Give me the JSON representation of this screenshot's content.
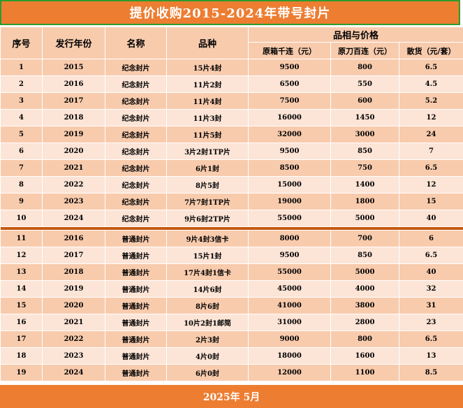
{
  "title": "提价收购2015-2024年带号封片",
  "headers": {
    "seq": "序号",
    "year": "发行年份",
    "name": "名称",
    "variety": "品种",
    "group": "品相与价格",
    "box": "原箱千连（元）",
    "knife": "原刀百连（元）",
    "loose": "散货（元/套）"
  },
  "section1": [
    {
      "seq": "1",
      "year": "2015",
      "name": "纪念封片",
      "variety": "15片4封",
      "box": "9500",
      "knife": "800",
      "loose": "6.5"
    },
    {
      "seq": "2",
      "year": "2016",
      "name": "纪念封片",
      "variety": "11片2封",
      "box": "6500",
      "knife": "550",
      "loose": "4.5"
    },
    {
      "seq": "3",
      "year": "2017",
      "name": "纪念封片",
      "variety": "11片4封",
      "box": "7500",
      "knife": "600",
      "loose": "5.2"
    },
    {
      "seq": "4",
      "year": "2018",
      "name": "纪念封片",
      "variety": "11片3封",
      "box": "16000",
      "knife": "1450",
      "loose": "12"
    },
    {
      "seq": "5",
      "year": "2019",
      "name": "纪念封片",
      "variety": "11片5封",
      "box": "32000",
      "knife": "3000",
      "loose": "24"
    },
    {
      "seq": "6",
      "year": "2020",
      "name": "纪念封片",
      "variety": "3片2封1TP片",
      "box": "9500",
      "knife": "850",
      "loose": "7"
    },
    {
      "seq": "7",
      "year": "2021",
      "name": "纪念封片",
      "variety": "6片1封",
      "box": "8500",
      "knife": "750",
      "loose": "6.5"
    },
    {
      "seq": "8",
      "year": "2022",
      "name": "纪念封片",
      "variety": "8片5封",
      "box": "15000",
      "knife": "1400",
      "loose": "12"
    },
    {
      "seq": "9",
      "year": "2023",
      "name": "纪念封片",
      "variety": "7片7封1TP片",
      "box": "19000",
      "knife": "1800",
      "loose": "15"
    },
    {
      "seq": "10",
      "year": "2024",
      "name": "纪念封片",
      "variety": "9片6封2TP片",
      "box": "55000",
      "knife": "5000",
      "loose": "40"
    }
  ],
  "section2": [
    {
      "seq": "11",
      "year": "2016",
      "name": "普通封片",
      "variety": "9片4封3信卡",
      "box": "8000",
      "knife": "700",
      "loose": "6"
    },
    {
      "seq": "12",
      "year": "2017",
      "name": "普通封片",
      "variety": "15片1封",
      "box": "9500",
      "knife": "850",
      "loose": "6.5"
    },
    {
      "seq": "13",
      "year": "2018",
      "name": "普通封片",
      "variety": "17片4封1信卡",
      "box": "55000",
      "knife": "5000",
      "loose": "40"
    },
    {
      "seq": "14",
      "year": "2019",
      "name": "普通封片",
      "variety": "14片6封",
      "box": "45000",
      "knife": "4000",
      "loose": "32"
    },
    {
      "seq": "15",
      "year": "2020",
      "name": "普通封片",
      "variety": "8片6封",
      "box": "41000",
      "knife": "3800",
      "loose": "31"
    },
    {
      "seq": "16",
      "year": "2021",
      "name": "普通封片",
      "variety": "10片2封1邮简",
      "box": "31000",
      "knife": "2800",
      "loose": "23"
    },
    {
      "seq": "17",
      "year": "2022",
      "name": "普通封片",
      "variety": "2片3封",
      "box": "9000",
      "knife": "800",
      "loose": "6.5"
    },
    {
      "seq": "18",
      "year": "2023",
      "name": "普通封片",
      "variety": "4片0封",
      "box": "18000",
      "knife": "1600",
      "loose": "13"
    },
    {
      "seq": "19",
      "year": "2024",
      "name": "普通封片",
      "variety": "6片0封",
      "box": "12000",
      "knife": "1100",
      "loose": "8.5"
    }
  ],
  "footer": "2025年  5月"
}
